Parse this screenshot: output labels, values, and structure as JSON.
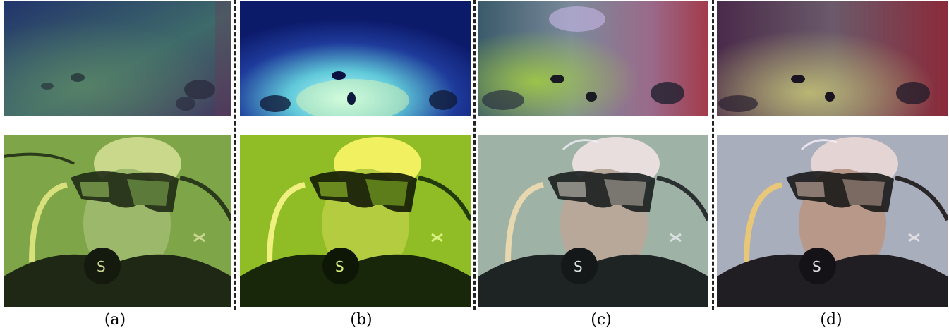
{
  "figure": {
    "columns": [
      {
        "label": "(a)",
        "top_image": "underwater-seafloor-original",
        "bottom_image": "diver-portrait-original"
      },
      {
        "label": "(b)",
        "top_image": "underwater-seafloor-enhanced-b",
        "bottom_image": "diver-portrait-enhanced-b"
      },
      {
        "label": "(c)",
        "top_image": "underwater-seafloor-enhanced-c",
        "bottom_image": "diver-portrait-enhanced-c"
      },
      {
        "label": "(d)",
        "top_image": "underwater-seafloor-enhanced-d",
        "bottom_image": "diver-portrait-enhanced-d"
      }
    ]
  }
}
